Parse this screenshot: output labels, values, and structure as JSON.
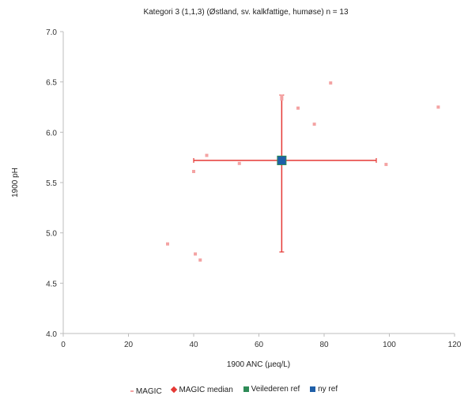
{
  "chart_data": {
    "type": "scatter",
    "title": "Kategori 3  (1,1,3) (Østland, sv. kalkfattige, humøse)   n = 13",
    "xlabel": "1900 ANC (µeq/L)",
    "ylabel": "1900 pH",
    "xlim": [
      0,
      120
    ],
    "ylim": [
      4.0,
      7.0
    ],
    "x_ticks": [
      "0",
      "20",
      "40",
      "60",
      "80",
      "100",
      "120"
    ],
    "y_ticks": [
      "4.0",
      "4.5",
      "5.0",
      "5.5",
      "6.0",
      "6.5",
      "7.0"
    ],
    "grid": false,
    "legend_position": "bottom",
    "series": [
      {
        "name": "MAGIC",
        "color": "#f4a3a3",
        "points": [
          {
            "x": 32,
            "y": 4.89
          },
          {
            "x": 40.5,
            "y": 4.79
          },
          {
            "x": 42,
            "y": 4.73
          },
          {
            "x": 40,
            "y": 5.61
          },
          {
            "x": 44,
            "y": 5.77
          },
          {
            "x": 54,
            "y": 5.69
          },
          {
            "x": 67,
            "y": 6.36
          },
          {
            "x": 67,
            "y": 6.33
          },
          {
            "x": 72,
            "y": 6.24
          },
          {
            "x": 77,
            "y": 6.08
          },
          {
            "x": 82,
            "y": 6.49
          },
          {
            "x": 99,
            "y": 5.68
          },
          {
            "x": 115,
            "y": 6.25
          }
        ]
      },
      {
        "name": "MAGIC median",
        "color": "#e53935",
        "point": {
          "x": 67,
          "y": 5.72
        },
        "x_range": [
          40,
          96
        ],
        "y_range": [
          4.81,
          6.37
        ]
      },
      {
        "name": "Veilederen ref",
        "color": "#2e8b57",
        "point": {
          "x": 67,
          "y": 5.72
        }
      },
      {
        "name": "ny ref",
        "color": "#1f5fa8",
        "point": {
          "x": 67,
          "y": 5.72
        }
      }
    ]
  },
  "legend": {
    "magic": "MAGIC",
    "median": "MAGIC median",
    "veil": "Veilederen ref",
    "ny": "ny ref"
  }
}
